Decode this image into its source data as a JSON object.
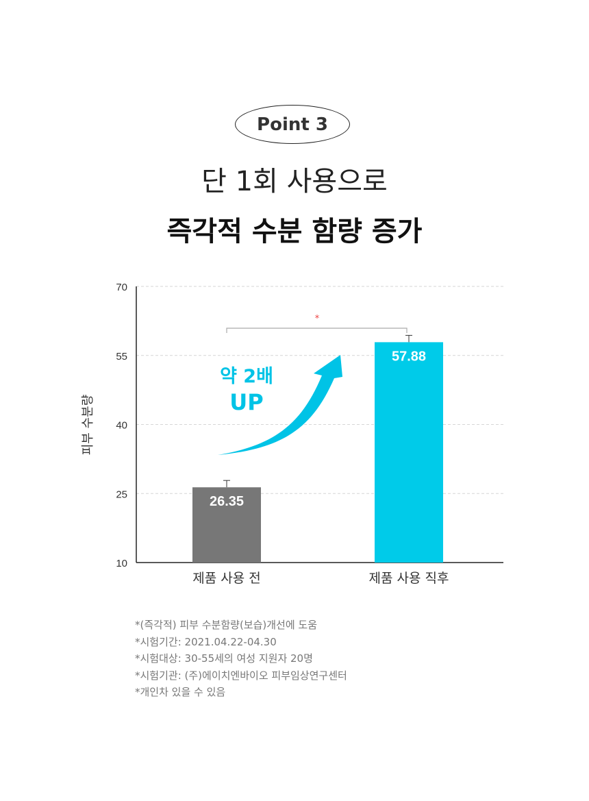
{
  "header": {
    "badge": "Point 3",
    "title_line1": "단 1회 사용으로",
    "title_line2": "즉각적 수분 함량 증가"
  },
  "chart_data": {
    "type": "bar",
    "categories": [
      "제품 사용 전",
      "제품 사용 직후"
    ],
    "values": [
      26.35,
      57.88
    ],
    "value_labels": [
      "26.35",
      "57.88"
    ],
    "ylabel": "피부 수분량",
    "ylim": [
      10,
      70
    ],
    "yticks": [
      10,
      25,
      40,
      55,
      70
    ],
    "grid": true,
    "colors": [
      "#777777",
      "#00cbe9"
    ],
    "significance": "*",
    "annotation": {
      "line1": "약 2배",
      "line2": "UP",
      "color": "#00c3e6"
    }
  },
  "footnotes": [
    "*(즉각적) 피부 수분함량(보습)개선에 도움",
    "*시험기간: 2021.04.22-04.30",
    "*시험대상: 30-55세의 여성 지원자 20명",
    "*시험기관: (주)에이치엔바이오 피부임상연구센터",
    "*개인차 있을 수 있음"
  ]
}
